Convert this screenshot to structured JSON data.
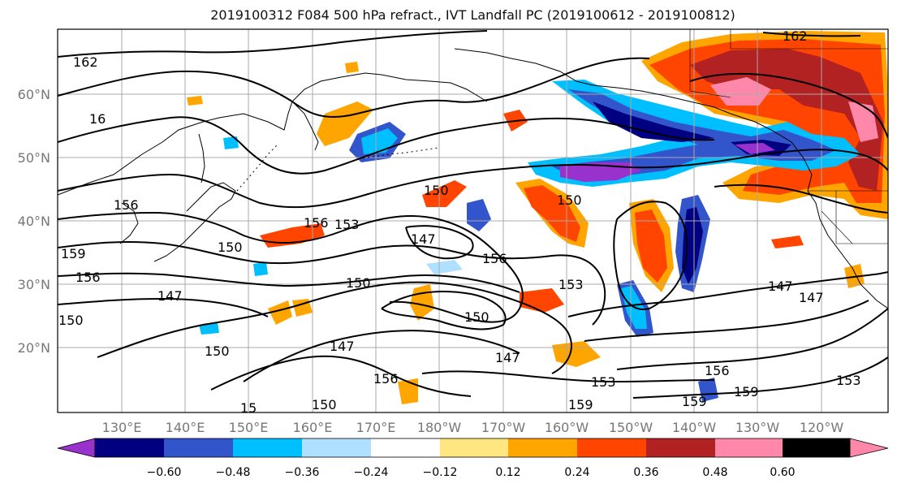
{
  "title": "2019100312 F084 500 hPa refract., IVT Landfall PC (2019100612 - 2019100812)",
  "latitude_labels": [
    "60°N",
    "50°N",
    "40°N",
    "30°N",
    "20°N"
  ],
  "longitude_labels": [
    "130°E",
    "140°E",
    "150°E",
    "160°E",
    "170°E",
    "180°W",
    "170°W",
    "160°W",
    "150°W",
    "140°W",
    "130°W",
    "120°W"
  ],
  "contour_labels": [
    "162",
    "16",
    "156",
    "159",
    "156",
    "150",
    "150",
    "156",
    "153",
    "150",
    "147",
    "150",
    "156",
    "150",
    "153",
    "150",
    "147",
    "147",
    "150",
    "147",
    "156",
    "147",
    "153",
    "159",
    "156",
    "159",
    "147",
    "153",
    "162",
    "159",
    "15",
    "150"
  ],
  "colorbar": {
    "tick_labels": [
      "−0.60",
      "−0.48",
      "−0.36",
      "−0.24",
      "−0.12",
      "0.12",
      "0.24",
      "0.36",
      "0.48",
      "0.60"
    ],
    "colors": [
      "#9932cc",
      "#000080",
      "#3355cc",
      "#00bfff",
      "#b0e0ff",
      "#ffffff",
      "#ffe680",
      "#ffa500",
      "#ff4500",
      "#b22222",
      "#ff88aa"
    ]
  }
}
